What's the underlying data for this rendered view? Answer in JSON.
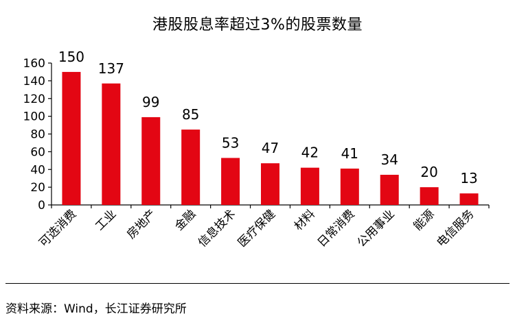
{
  "chart_data": {
    "type": "bar",
    "title": "港股股息率超过3%的股票数量",
    "xlabel": "",
    "ylabel": "",
    "categories": [
      "可选消费",
      "工业",
      "房地产",
      "金融",
      "信息技术",
      "医疗保健",
      "材料",
      "日常消费",
      "公用事业",
      "能源",
      "电信服务"
    ],
    "values": [
      150,
      137,
      99,
      85,
      53,
      47,
      42,
      41,
      34,
      20,
      13
    ],
    "ylim": [
      0,
      160
    ],
    "yticks": [
      0,
      20,
      40,
      60,
      80,
      100,
      120,
      140,
      160
    ],
    "grid": false,
    "bar_color": "#e30613",
    "data_labels": true
  },
  "source": "资料来源：Wind，长江证券研究所"
}
